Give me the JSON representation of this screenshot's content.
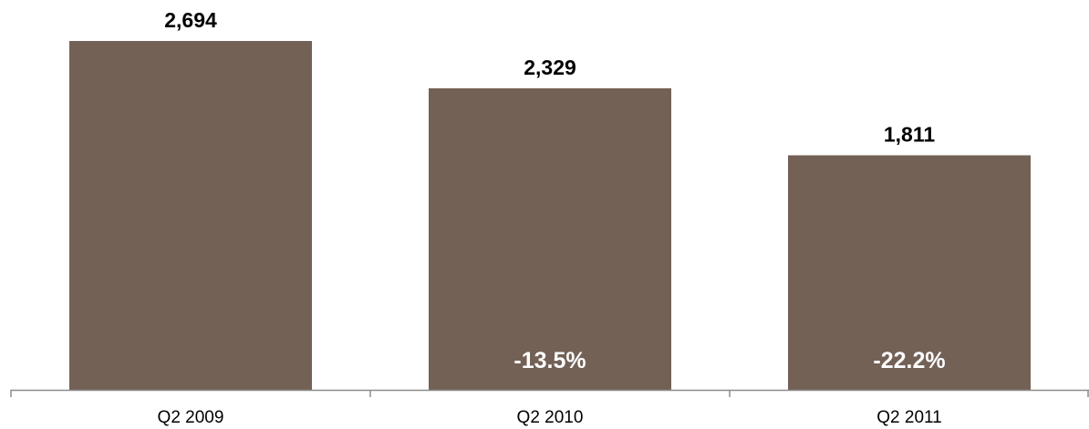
{
  "chart_data": {
    "type": "bar",
    "categories": [
      "Q2 2009",
      "Q2 2010",
      "Q2 2011"
    ],
    "values": [
      2694,
      2329,
      1811
    ],
    "value_labels": [
      "2,694",
      "2,329",
      "1,811"
    ],
    "change_labels": [
      "",
      "-13.5%",
      "-22.2%"
    ],
    "title": "",
    "xlabel": "",
    "ylabel": "",
    "ylim": [
      0,
      2694
    ],
    "grid": false,
    "legend": "none",
    "colors": {
      "bar": "#736156",
      "axis": "#8c8c8c",
      "value_text": "#000000",
      "change_text": "#ffffff"
    }
  }
}
